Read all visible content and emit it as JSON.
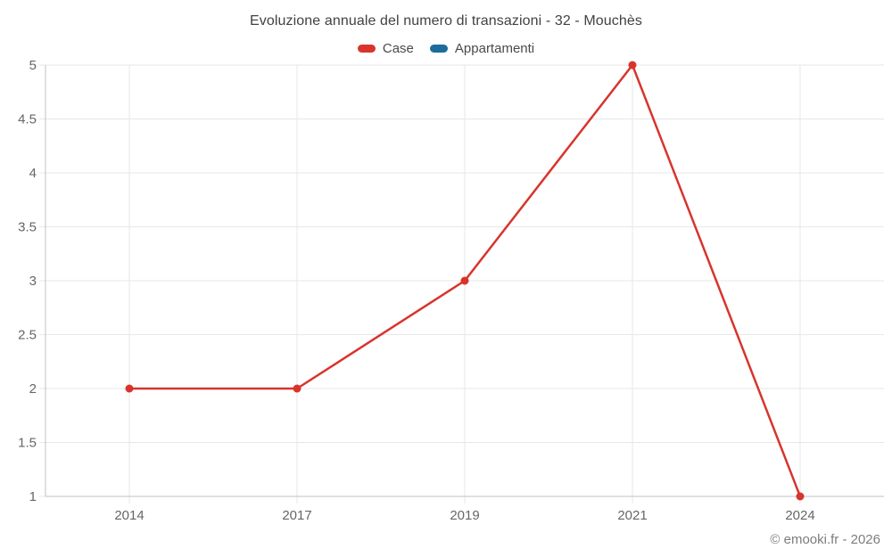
{
  "chart_data": {
    "type": "line",
    "title": "Evoluzione annuale del numero di transazioni - 32 - Mouchès",
    "categories": [
      "2014",
      "2017",
      "2019",
      "2021",
      "2024"
    ],
    "series": [
      {
        "name": "Case",
        "color": "#d8342c",
        "values": [
          2,
          2,
          3,
          5,
          1
        ]
      },
      {
        "name": "Appartamenti",
        "color": "#1b6d9e",
        "values": []
      }
    ],
    "ylim": [
      1,
      5
    ],
    "yticks": [
      1,
      1.5,
      2,
      2.5,
      3,
      3.5,
      4,
      4.5,
      5
    ],
    "xlabel": "",
    "ylabel": "",
    "grid": true,
    "legend_position": "top"
  },
  "footer": {
    "credit": "© emooki.fr - 2026"
  },
  "colors": {
    "background": "#ffffff",
    "grid": "#e7e7e7",
    "axis": "#c2c2c2",
    "title_text": "#424242",
    "tick_label": "#666666",
    "legend_text": "#4a4a4a",
    "credit_text": "#7d7d7d"
  }
}
